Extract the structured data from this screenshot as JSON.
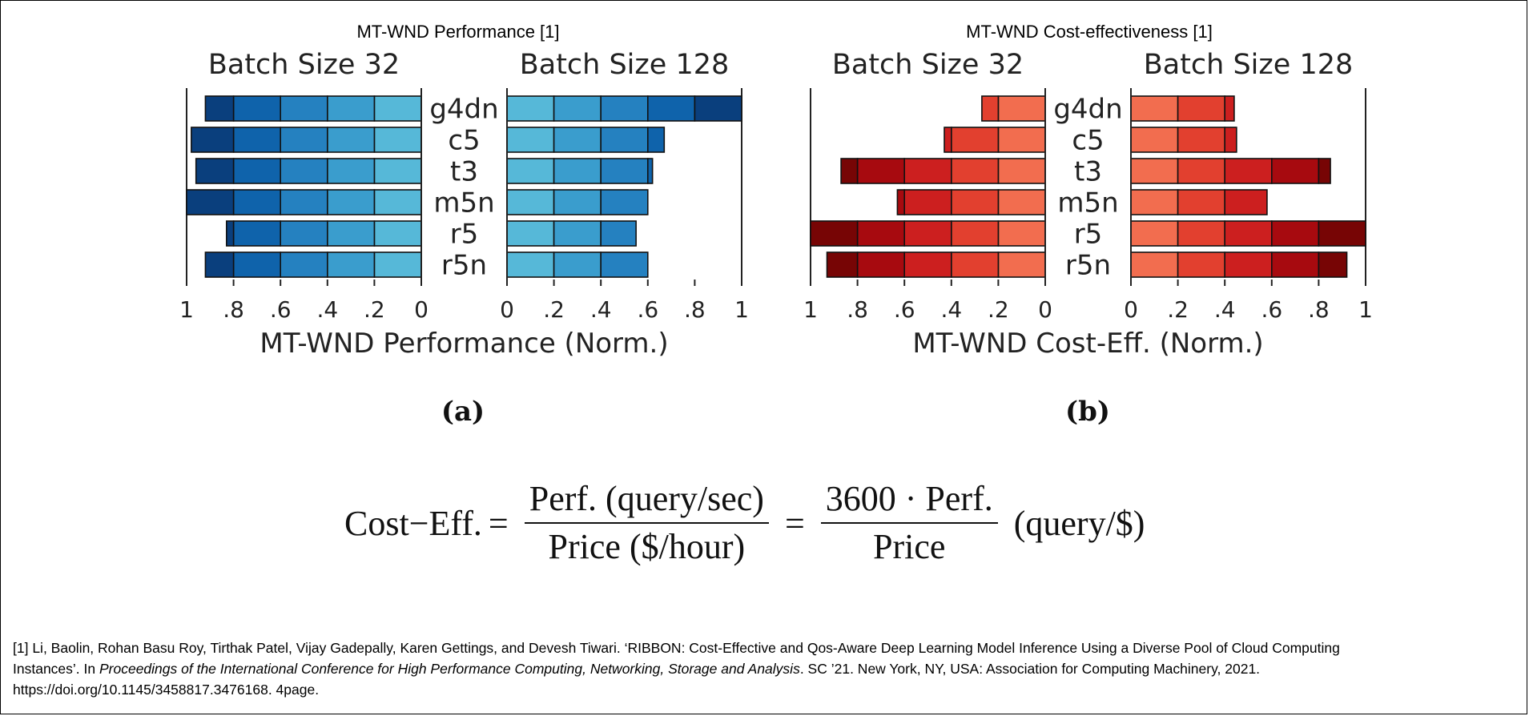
{
  "figure_titles": [
    "MT-WND Performance [1]",
    "MT-WND Cost-effectiveness [1]"
  ],
  "panel_labels": [
    "(a)",
    "(b)"
  ],
  "formula": {
    "lhs": "Cost−Eff.",
    "eq": "=",
    "frac1_num": "Perf. (query/sec)",
    "frac1_den": "Price ($/hour)",
    "frac2_num": "3600 · Perf.",
    "frac2_den": "Price",
    "unit": "(query/$)"
  },
  "reference": {
    "part1": "[1] Li, Baolin, Rohan Basu Roy, Tirthak Patel, Vijay Gadepally, Karen Gettings, and Devesh Tiwari. ‘RIBBON: Cost-Effective and Qos-Aware Deep Learning Model Inference Using a Diverse Pool of Cloud Computing Instances’. In ",
    "venue": "Proceedings of the International Conference for High Performance Computing, Networking, Storage and Analysis",
    "part2": ". SC ’21. New York, NY, USA: Association for Computing Machinery, 2021. https://doi.org/10.1145/3458817.3476168. 4page."
  },
  "chart_data": [
    {
      "type": "bar",
      "orientation": "horizontal-mirrored",
      "xlabel": "MT-WND Performance (Norm.)",
      "categories": [
        "g4dn",
        "c5",
        "t3",
        "m5n",
        "r5",
        "r5n"
      ],
      "xlim": [
        0,
        1
      ],
      "xticks": [
        "0",
        ".2",
        ".4",
        ".6",
        ".8",
        "1"
      ],
      "reversed_xticks": [
        "1",
        ".8",
        ".6",
        ".4",
        ".2",
        "0"
      ],
      "colors": [
        "#56b8d8",
        "#3a9dcd",
        "#2581c0",
        "#0f63ab",
        "#0a3f7d"
      ],
      "series": [
        {
          "name": "Batch Size 32",
          "values": [
            0.92,
            0.98,
            0.96,
            1.0,
            0.83,
            0.92
          ]
        },
        {
          "name": "Batch Size 128",
          "values": [
            1.0,
            0.67,
            0.62,
            0.6,
            0.55,
            0.6
          ]
        }
      ]
    },
    {
      "type": "bar",
      "orientation": "horizontal-mirrored",
      "xlabel": "MT-WND Cost-Eff. (Norm.)",
      "categories": [
        "g4dn",
        "c5",
        "t3",
        "m5n",
        "r5",
        "r5n"
      ],
      "xlim": [
        0,
        1
      ],
      "xticks": [
        "0",
        ".2",
        ".4",
        ".6",
        ".8",
        "1"
      ],
      "reversed_xticks": [
        "1",
        ".8",
        ".6",
        ".4",
        ".2",
        "0"
      ],
      "colors": [
        "#f26d4f",
        "#e2402f",
        "#cc1f1f",
        "#a70a0f",
        "#770505"
      ],
      "series": [
        {
          "name": "Batch Size 32",
          "values": [
            0.27,
            0.43,
            0.87,
            0.63,
            1.0,
            0.93
          ]
        },
        {
          "name": "Batch Size 128",
          "values": [
            0.44,
            0.45,
            0.85,
            0.58,
            1.0,
            0.92
          ]
        }
      ]
    }
  ]
}
